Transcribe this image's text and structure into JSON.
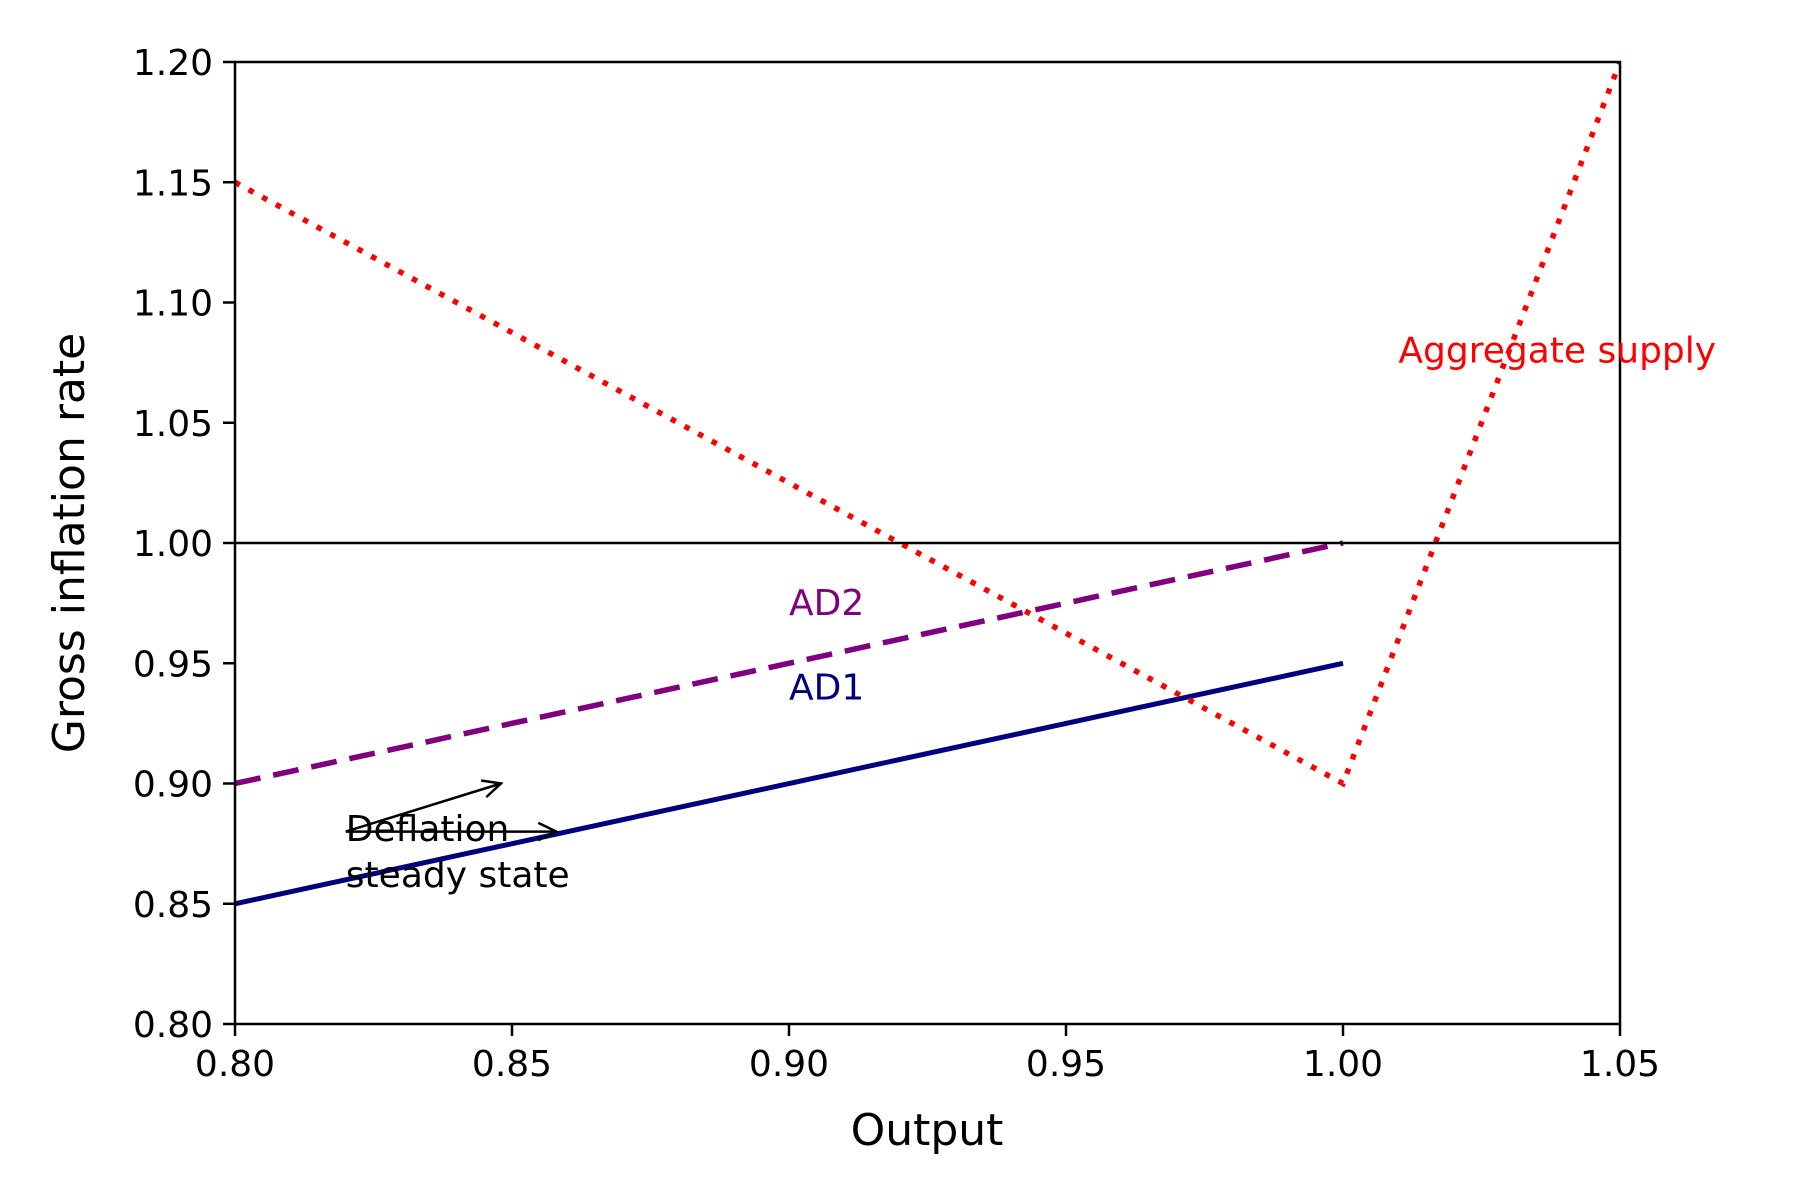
{
  "chart_data": {
    "type": "line",
    "title": "",
    "xlabel": "Output",
    "ylabel": "Gross inflation rate",
    "xlim": [
      0.8,
      1.05
    ],
    "ylim": [
      0.8,
      1.2
    ],
    "x_ticks": [
      "0.80",
      "0.85",
      "0.90",
      "0.95",
      "1.00",
      "1.05"
    ],
    "y_ticks": [
      "0.80",
      "0.85",
      "0.90",
      "0.95",
      "1.00",
      "1.05",
      "1.10",
      "1.15",
      "1.20"
    ],
    "grid": false,
    "legend": "none",
    "series": [
      {
        "id": "ad1",
        "style": "solid",
        "color": "#000080",
        "x": [
          0.8,
          1.0
        ],
        "y": [
          0.85,
          0.95
        ]
      },
      {
        "id": "ad2",
        "style": "dashed",
        "color": "#800080",
        "x": [
          0.8,
          1.0
        ],
        "y": [
          0.9,
          1.0
        ]
      },
      {
        "id": "aggregate-supply",
        "style": "dotted",
        "color": "#ff0000",
        "x": [
          0.8,
          1.0,
          1.05
        ],
        "y": [
          1.15,
          0.9,
          1.2
        ]
      },
      {
        "id": "reference-line",
        "style": "solid",
        "color": "#000000",
        "x": [
          0.8,
          1.05
        ],
        "y": [
          1.0,
          1.0
        ]
      }
    ],
    "annotations": [
      {
        "id": "ad1-label",
        "text": "AD1",
        "x": 0.9,
        "y": 0.935,
        "color": "#000080"
      },
      {
        "id": "ad2-label",
        "text": "AD2",
        "x": 0.9,
        "y": 0.97,
        "color": "#800080"
      },
      {
        "id": "as-label",
        "text": "Aggregate supply",
        "x": 1.01,
        "y": 1.075,
        "color": "#ff0000"
      },
      {
        "id": "deflation-label-1",
        "text": "Deflation",
        "x": 0.82,
        "y": 0.876,
        "color": "#000000"
      },
      {
        "id": "deflation-label-2",
        "text": "steady state",
        "x": 0.82,
        "y": 0.857,
        "color": "#000000"
      }
    ],
    "arrows": [
      {
        "id": "arrow-to-ad2",
        "from": [
          0.82,
          0.88
        ],
        "to": [
          0.848,
          0.9
        ]
      },
      {
        "id": "arrow-to-ad1",
        "from": [
          0.82,
          0.88
        ],
        "to": [
          0.858,
          0.88
        ]
      }
    ]
  }
}
